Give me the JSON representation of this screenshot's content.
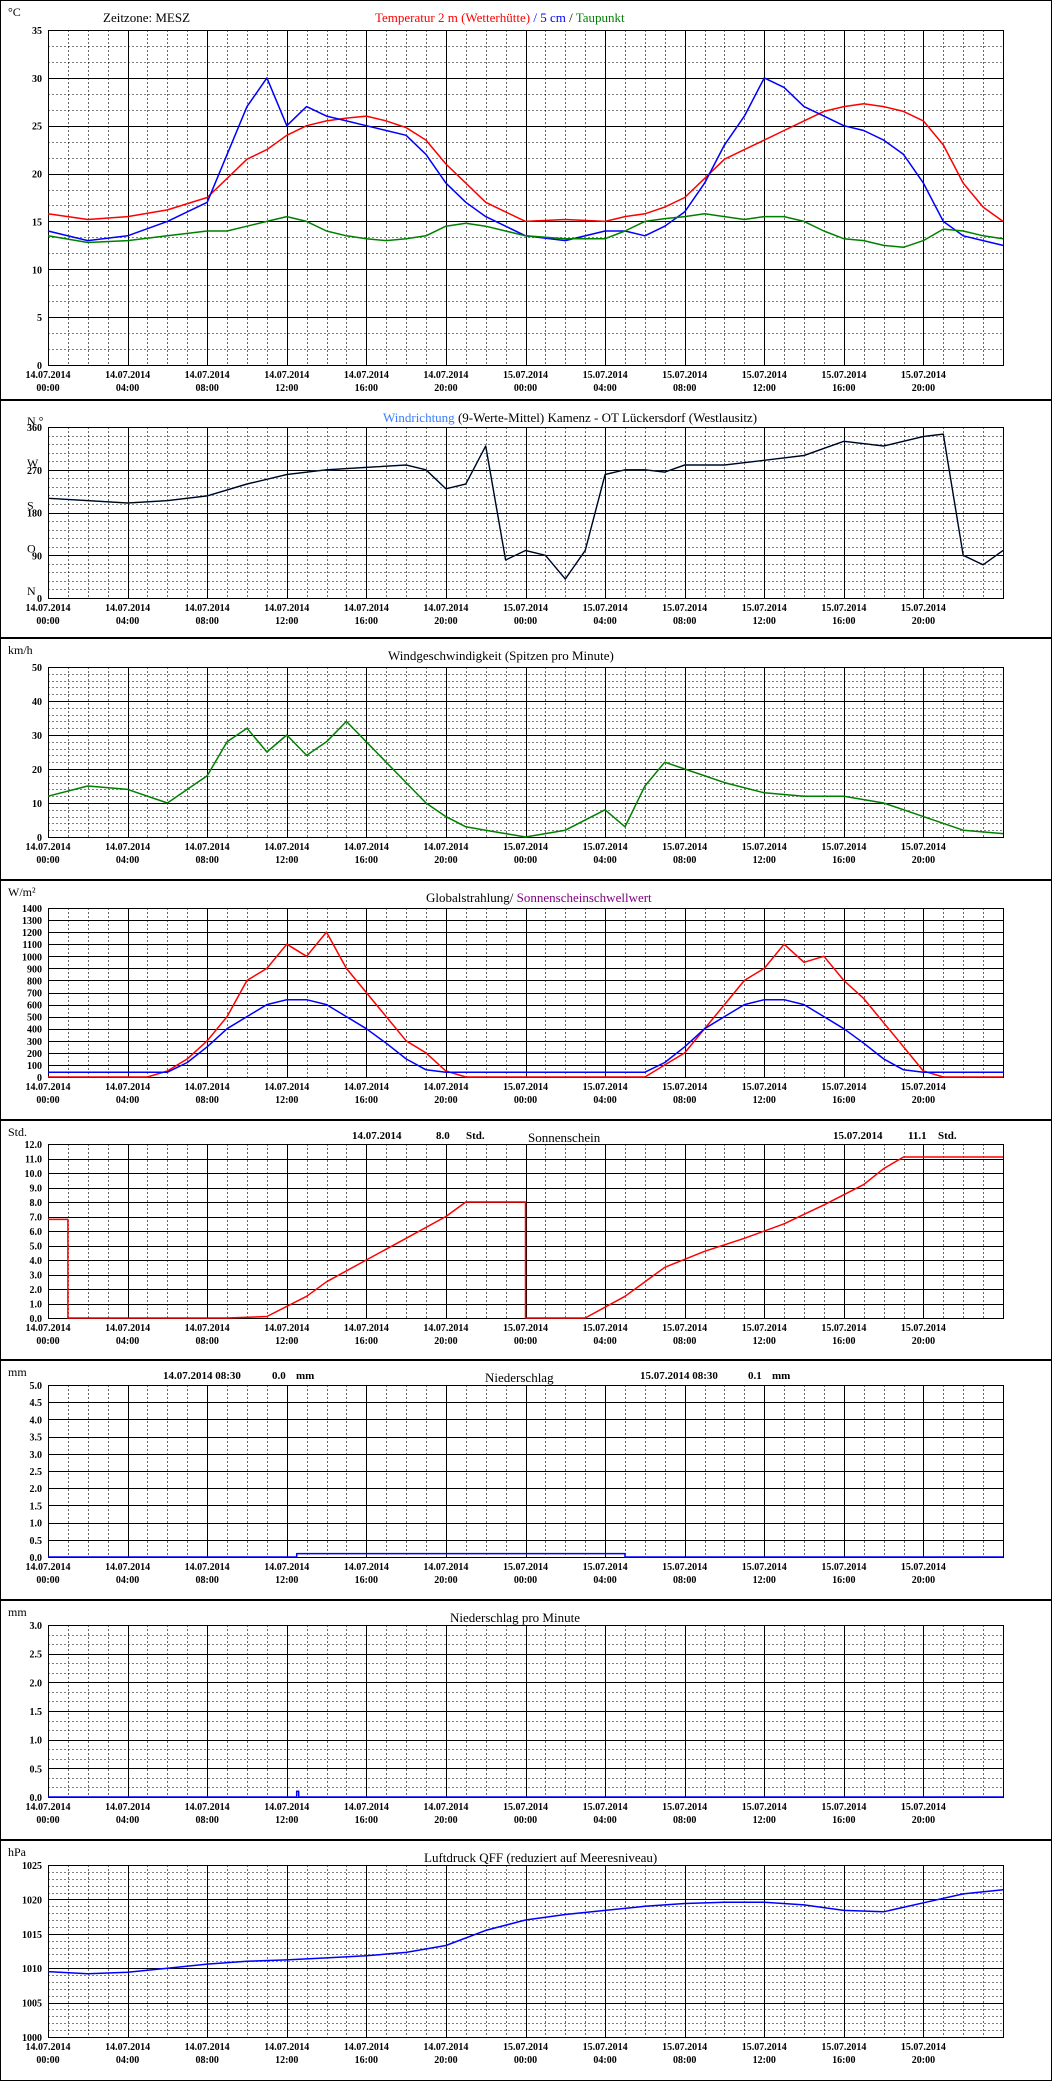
{
  "x_ticks": [
    [
      "14.07.2014",
      "00:00"
    ],
    [
      "14.07.2014",
      "04:00"
    ],
    [
      "14.07.2014",
      "08:00"
    ],
    [
      "14.07.2014",
      "12:00"
    ],
    [
      "14.07.2014",
      "16:00"
    ],
    [
      "14.07.2014",
      "20:00"
    ],
    [
      "15.07.2014",
      "00:00"
    ],
    [
      "15.07.2014",
      "04:00"
    ],
    [
      "15.07.2014",
      "08:00"
    ],
    [
      "15.07.2014",
      "12:00"
    ],
    [
      "15.07.2014",
      "16:00"
    ],
    [
      "15.07.2014",
      "20:00"
    ]
  ],
  "colors": {
    "red": "#ff0000",
    "blue": "#0000ff",
    "green": "#008000",
    "lightblue": "#3a7cff",
    "dark": "#000000",
    "purple": "#800080"
  },
  "panels": [
    {
      "id": "temperature",
      "unit": "°C",
      "zone_label": "Zeitzone: MESZ",
      "title_parts": [
        {
          "text": "Temperatur 2 m (Wetterhütte)",
          "color": "red"
        },
        {
          "text": "  /  ",
          "color": "blue"
        },
        {
          "text": "5 cm",
          "color": "blue"
        },
        {
          "text": " / ",
          "color": "dark"
        },
        {
          "text": "Taupunkt",
          "color": "green"
        }
      ],
      "y_tick_labels": [
        "0",
        "5",
        "10",
        "15",
        "20",
        "25",
        "30",
        "35"
      ],
      "chart_data": {
        "type": "line",
        "ylim": [
          0,
          35
        ],
        "x_hours": [
          0,
          2,
          4,
          6,
          8,
          9,
          10,
          11,
          12,
          13,
          14,
          15,
          16,
          17,
          18,
          19,
          20,
          21,
          22,
          23,
          24,
          26,
          28,
          29,
          30,
          31,
          32,
          33,
          34,
          35,
          36,
          37,
          38,
          39,
          40,
          41,
          42,
          43,
          44,
          45,
          46,
          47,
          48
        ],
        "series": [
          {
            "name": "Temperatur 2 m (Wetterhütte)",
            "color": "red",
            "values": [
              15.8,
              15.2,
              15.5,
              16.2,
              17.5,
              19.5,
              21.5,
              22.5,
              24,
              25,
              25.5,
              25.8,
              26,
              25.5,
              24.8,
              23.5,
              21,
              19,
              17,
              16,
              15,
              15.2,
              15,
              15.5,
              15.8,
              16.5,
              17.5,
              19.5,
              21.5,
              22.5,
              23.5,
              24.5,
              25.5,
              26.5,
              27,
              27.3,
              27,
              26.5,
              25.5,
              23,
              19,
              16.5,
              15
            ]
          },
          {
            "name": "5 cm",
            "color": "blue",
            "values": [
              14,
              13,
              13.5,
              15,
              17,
              22,
              27,
              30,
              25,
              27,
              26,
              25.5,
              25,
              24.5,
              24,
              22,
              19,
              17,
              15.5,
              14.5,
              13.5,
              13,
              14,
              14,
              13.5,
              14.5,
              16,
              19,
              23,
              26,
              30,
              29,
              27,
              26,
              25,
              24.5,
              23.5,
              22,
              19,
              15,
              13.5,
              13,
              12.5
            ]
          },
          {
            "name": "Taupunkt",
            "color": "green",
            "values": [
              13.5,
              12.8,
              13,
              13.5,
              14,
              14,
              14.5,
              15,
              15.5,
              15,
              14,
              13.5,
              13.2,
              13,
              13.2,
              13.5,
              14.5,
              14.8,
              14.5,
              14,
              13.5,
              13.2,
              13.2,
              14,
              15,
              15.3,
              15.5,
              15.8,
              15.5,
              15.2,
              15.5,
              15.5,
              15,
              14,
              13.2,
              13,
              12.5,
              12.3,
              13,
              14.2,
              14,
              13.5,
              13.2
            ]
          }
        ]
      }
    },
    {
      "id": "winddirection",
      "unit": "",
      "title_parts": [
        {
          "text": "Windrichtung",
          "color": "lightblue"
        },
        {
          "text": " (9-Werte-Mittel)",
          "color": "dark"
        },
        {
          "text": "          Kamenz - OT Lückersdorf (Westlausitz)",
          "color": "dark"
        }
      ],
      "y_tick_labels": [
        "0",
        "90",
        "180",
        "270",
        "360"
      ],
      "compass_labels": [
        "N",
        "O",
        "S",
        "W",
        "N °"
      ],
      "chart_data": {
        "type": "line",
        "ylim": [
          0,
          360
        ],
        "x_hours": [
          0,
          2,
          4,
          6,
          8,
          10,
          11,
          12,
          14,
          16,
          18,
          19,
          20,
          21,
          22,
          23,
          24,
          25,
          26,
          27,
          28,
          29,
          30,
          31,
          32,
          34,
          36,
          38,
          40,
          42,
          44,
          45,
          46,
          47,
          48
        ],
        "series": [
          {
            "name": "Windrichtung",
            "color": "lightblue",
            "values": [
              210,
              205,
              200,
              205,
              215,
              240,
              250,
              260,
              270,
              275,
              280,
              270,
              230,
              240,
              320,
              80,
              100,
              90,
              40,
              100,
              260,
              270,
              270,
              265,
              280,
              280,
              290,
              300,
              330,
              320,
              340,
              345,
              90,
              70,
              100
            ]
          },
          {
            "name": "9-Werte-Mittel",
            "color": "dark",
            "values": [
              210,
              205,
              200,
              205,
              215,
              240,
              250,
              260,
              270,
              275,
              280,
              270,
              230,
              240,
              320,
              80,
              100,
              90,
              40,
              100,
              260,
              270,
              270,
              265,
              280,
              280,
              290,
              300,
              330,
              320,
              340,
              345,
              90,
              70,
              100
            ]
          }
        ]
      }
    },
    {
      "id": "windspeed",
      "unit": "km/h",
      "title_parts": [
        {
          "text": "Windgeschwindigkeit (Spitzen pro Minute)",
          "color": "dark"
        }
      ],
      "y_tick_labels": [
        "0",
        "10",
        "20",
        "30",
        "40",
        "50"
      ],
      "chart_data": {
        "type": "line",
        "ylim": [
          0,
          50
        ],
        "x_hours": [
          0,
          2,
          4,
          6,
          8,
          9,
          10,
          11,
          12,
          13,
          14,
          15,
          16,
          17,
          18,
          19,
          20,
          21,
          22,
          23,
          24,
          26,
          28,
          29,
          30,
          31,
          32,
          34,
          36,
          38,
          40,
          42,
          44,
          46,
          48
        ],
        "series": [
          {
            "name": "Windgeschwindigkeit",
            "color": "green",
            "values": [
              12,
              15,
              14,
              10,
              18,
              28,
              32,
              25,
              30,
              24,
              28,
              34,
              28,
              22,
              16,
              10,
              6,
              3,
              2,
              1,
              0,
              2,
              8,
              3,
              15,
              22,
              20,
              16,
              13,
              12,
              12,
              10,
              6,
              2,
              1
            ]
          }
        ]
      }
    },
    {
      "id": "radiation",
      "unit": "W/m²",
      "title_parts": [
        {
          "text": "Globalstrahlung/ ",
          "color": "dark"
        },
        {
          "text": "Sonnenscheinschwellwert",
          "color": "purple"
        }
      ],
      "y_tick_labels": [
        "0",
        "100",
        "200",
        "300",
        "400",
        "500",
        "600",
        "700",
        "800",
        "900",
        "1000",
        "1100",
        "1200",
        "1300",
        "1400"
      ],
      "chart_data": {
        "type": "line",
        "ylim": [
          0,
          1400
        ],
        "x_hours": [
          0,
          5,
          6,
          7,
          8,
          9,
          10,
          11,
          12,
          13,
          14,
          15,
          16,
          17,
          18,
          19,
          20,
          21,
          30,
          31,
          32,
          33,
          34,
          35,
          36,
          37,
          38,
          39,
          40,
          41,
          42,
          43,
          44,
          45,
          48
        ],
        "series": [
          {
            "name": "Globalstrahlung",
            "color": "red",
            "values": [
              0,
              0,
              50,
              150,
              300,
              500,
              800,
              900,
              1100,
              1000,
              1200,
              900,
              700,
              500,
              300,
              200,
              50,
              0,
              0,
              100,
              200,
              400,
              600,
              800,
              900,
              1100,
              950,
              1000,
              800,
              650,
              450,
              250,
              50,
              0,
              0
            ]
          },
          {
            "name": "Sonnenscheinschwellwert",
            "color": "blue",
            "values": [
              40,
              40,
              40,
              120,
              250,
              400,
              500,
              600,
              640,
              640,
              600,
              500,
              400,
              280,
              150,
              60,
              40,
              40,
              40,
              120,
              250,
              400,
              500,
              600,
              640,
              640,
              600,
              500,
              400,
              280,
              150,
              60,
              40,
              40,
              40
            ]
          }
        ]
      }
    },
    {
      "id": "sunshine",
      "unit": "Std.",
      "title_parts": [
        {
          "text": "Sonnenschein",
          "color": "dark"
        }
      ],
      "day1": {
        "date": "14.07.2014",
        "value": "8.0",
        "unit": "Std."
      },
      "day2": {
        "date": "15.07.2014",
        "value": "11.1",
        "unit": "Std."
      },
      "y_tick_labels": [
        "0.0",
        "1.0",
        "2.0",
        "3.0",
        "4.0",
        "5.0",
        "6.0",
        "7.0",
        "8.0",
        "9.0",
        "10.0",
        "11.0",
        "12.0"
      ],
      "chart_data": {
        "type": "line",
        "ylim": [
          0,
          12
        ],
        "x_hours": [
          0,
          1,
          1,
          9,
          11,
          13,
          14,
          16,
          18,
          20,
          21,
          23,
          24,
          24,
          27,
          29,
          31,
          33,
          35,
          37,
          39,
          41,
          42,
          43,
          44,
          45,
          46,
          48
        ],
        "series": [
          {
            "name": "Sonnenschein",
            "color": "red",
            "values": [
              6.8,
              6.8,
              0,
              0,
              0.1,
              1.5,
              2.5,
              4,
              5.5,
              7,
              8,
              8,
              8,
              0,
              0,
              1.5,
              3.5,
              4.6,
              5.5,
              6.5,
              7.8,
              9.2,
              10.3,
              11.1,
              11.1,
              11.1,
              11.1,
              11.1
            ]
          }
        ]
      }
    },
    {
      "id": "precip",
      "unit": "mm",
      "title_parts": [
        {
          "text": "Niederschlag",
          "color": "dark"
        }
      ],
      "day1": {
        "date": "14.07.2014 08:30",
        "value": "0.0",
        "unit": "mm"
      },
      "day2": {
        "date": "15.07.2014 08:30",
        "value": "0.1",
        "unit": "mm"
      },
      "y_tick_labels": [
        "0.0",
        "0.5",
        "1.0",
        "1.5",
        "2.0",
        "2.5",
        "3.0",
        "3.5",
        "4.0",
        "4.5",
        "5.0"
      ],
      "chart_data": {
        "type": "line",
        "ylim": [
          0,
          5
        ],
        "x_hours": [
          0,
          12.5,
          12.5,
          29,
          29,
          48
        ],
        "series": [
          {
            "name": "Niederschlag",
            "color": "blue",
            "values": [
              0,
              0,
              0.1,
              0.1,
              0,
              0
            ]
          }
        ]
      }
    },
    {
      "id": "precipmin",
      "unit": "mm",
      "title_parts": [
        {
          "text": "Niederschlag pro Minute",
          "color": "dark"
        }
      ],
      "y_tick_labels": [
        "0.0",
        "0.5",
        "1.0",
        "1.5",
        "2.0",
        "2.5",
        "3.0"
      ],
      "chart_data": {
        "type": "line",
        "ylim": [
          0,
          3
        ],
        "x_hours": [
          0,
          12.5,
          12.5,
          12.6,
          12.6,
          48
        ],
        "series": [
          {
            "name": "Niederschlag pro Minute",
            "color": "blue",
            "values": [
              0,
              0,
              0.1,
              0.1,
              0,
              0
            ]
          }
        ]
      }
    },
    {
      "id": "pressure",
      "unit": "hPa",
      "title_parts": [
        {
          "text": "Luftdruck QFF (reduziert auf Meeresniveau)",
          "color": "dark"
        }
      ],
      "y_tick_labels": [
        "1000",
        "1005",
        "1010",
        "1015",
        "1020",
        "1025"
      ],
      "chart_data": {
        "type": "line",
        "ylim": [
          1000,
          1025
        ],
        "x_hours": [
          0,
          2,
          4,
          6,
          8,
          10,
          12,
          14,
          16,
          18,
          20,
          22,
          24,
          26,
          28,
          30,
          32,
          34,
          36,
          38,
          40,
          42,
          44,
          46,
          48
        ],
        "series": [
          {
            "name": "Luftdruck QFF",
            "color": "blue",
            "values": [
              1009.5,
              1009.2,
              1009.4,
              1010,
              1010.6,
              1011,
              1011.2,
              1011.5,
              1011.8,
              1012.3,
              1013.3,
              1015.5,
              1017,
              1017.8,
              1018.4,
              1019,
              1019.4,
              1019.6,
              1019.6,
              1019.2,
              1018.4,
              1018.2,
              1019.5,
              1020.8,
              1021.4
            ]
          }
        ]
      }
    }
  ]
}
